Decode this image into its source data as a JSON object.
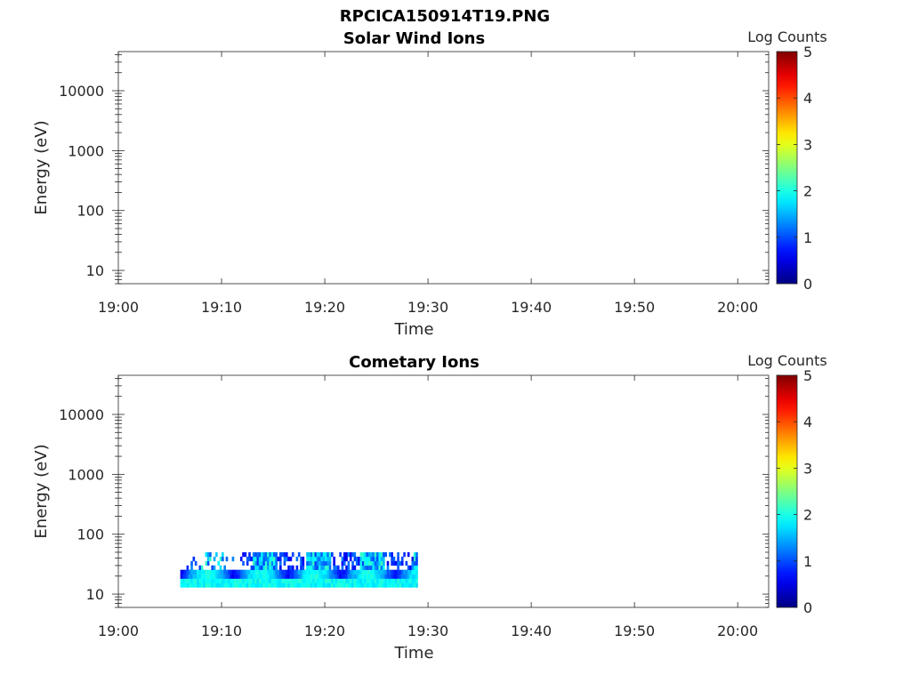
{
  "figure": {
    "title": "RPCICA150914T19.PNG"
  },
  "chart_data": [
    {
      "type": "heatmap",
      "title": "Solar Wind Ions",
      "xlabel": "Time",
      "ylabel": "Energy (eV)",
      "x_ticks": [
        "19:00",
        "19:10",
        "19:20",
        "19:30",
        "19:40",
        "19:50",
        "20:00"
      ],
      "x_range_minutes": [
        0,
        63
      ],
      "y_scale": "log",
      "y_ticks": [
        "10",
        "100",
        "1000",
        "10000"
      ],
      "y_range": [
        6,
        45000
      ],
      "colorbar": {
        "label": "Log Counts",
        "range": [
          0,
          5
        ],
        "ticks": [
          "0",
          "1",
          "2",
          "3",
          "4",
          "5"
        ],
        "colormap": "jet"
      },
      "data_extent": null,
      "data_summary": "no counts shown"
    },
    {
      "type": "heatmap",
      "title": "Cometary Ions",
      "xlabel": "Time",
      "ylabel": "Energy (eV)",
      "x_ticks": [
        "19:00",
        "19:10",
        "19:20",
        "19:30",
        "19:40",
        "19:50",
        "20:00"
      ],
      "x_range_minutes": [
        0,
        63
      ],
      "y_scale": "log",
      "y_ticks": [
        "10",
        "100",
        "1000",
        "10000"
      ],
      "y_range": [
        6,
        45000
      ],
      "colorbar": {
        "label": "Log Counts",
        "range": [
          0,
          5
        ],
        "ticks": [
          "0",
          "1",
          "2",
          "3",
          "4",
          "5"
        ],
        "colormap": "jet"
      },
      "data_extent": {
        "time_start": "19:06",
        "time_end": "19:29",
        "energy_min_eV": 13,
        "energy_max_eV": 50
      },
      "data_summary": "counts between about 13 and 50 eV from 19:06 to 19:29, log counts mostly 0.5 to 2.2"
    }
  ]
}
